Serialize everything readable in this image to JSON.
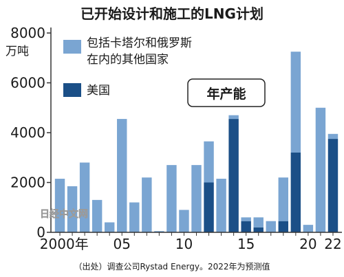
{
  "chart_data": {
    "type": "bar",
    "stacked": true,
    "title": "已开始设计和施工的LNG计划",
    "y_unit": "万吨",
    "ylim": [
      0,
      8000
    ],
    "y_ticks": [
      "0",
      "2000",
      "4000",
      "6000",
      "8000"
    ],
    "x": [
      2000,
      2001,
      2002,
      2003,
      2004,
      2005,
      2006,
      2007,
      2008,
      2009,
      2010,
      2011,
      2012,
      2013,
      2014,
      2015,
      2016,
      2017,
      2018,
      2019,
      2020,
      2021,
      2022
    ],
    "x_tick_labels": [
      {
        "year": 2000,
        "label": "2000年"
      },
      {
        "year": 2005,
        "label": "05"
      },
      {
        "year": 2010,
        "label": "10"
      },
      {
        "year": 2015,
        "label": "15"
      },
      {
        "year": 2020,
        "label": "20"
      },
      {
        "year": 2022,
        "label": "22"
      }
    ],
    "series": [
      {
        "name": "美国",
        "color": "#1b4f87",
        "values": [
          0,
          0,
          0,
          0,
          0,
          0,
          0,
          0,
          0,
          0,
          0,
          0,
          2000,
          0,
          4550,
          450,
          200,
          0,
          450,
          3200,
          0,
          0,
          3750
        ]
      },
      {
        "name": "包括卡塔尔和俄罗斯\n在内的其他国家",
        "color": "#7aa5d2",
        "values": [
          2150,
          1850,
          2800,
          1300,
          400,
          4550,
          1200,
          2200,
          50,
          2700,
          900,
          2700,
          1650,
          2150,
          150,
          150,
          400,
          450,
          1750,
          4050,
          300,
          5000,
          200
        ]
      }
    ],
    "legend_position": "top-left",
    "annotation": "年产能",
    "note": "（出处）调查公司Rystad Energy。2022年为预测值",
    "watermark": "日经中文网"
  }
}
